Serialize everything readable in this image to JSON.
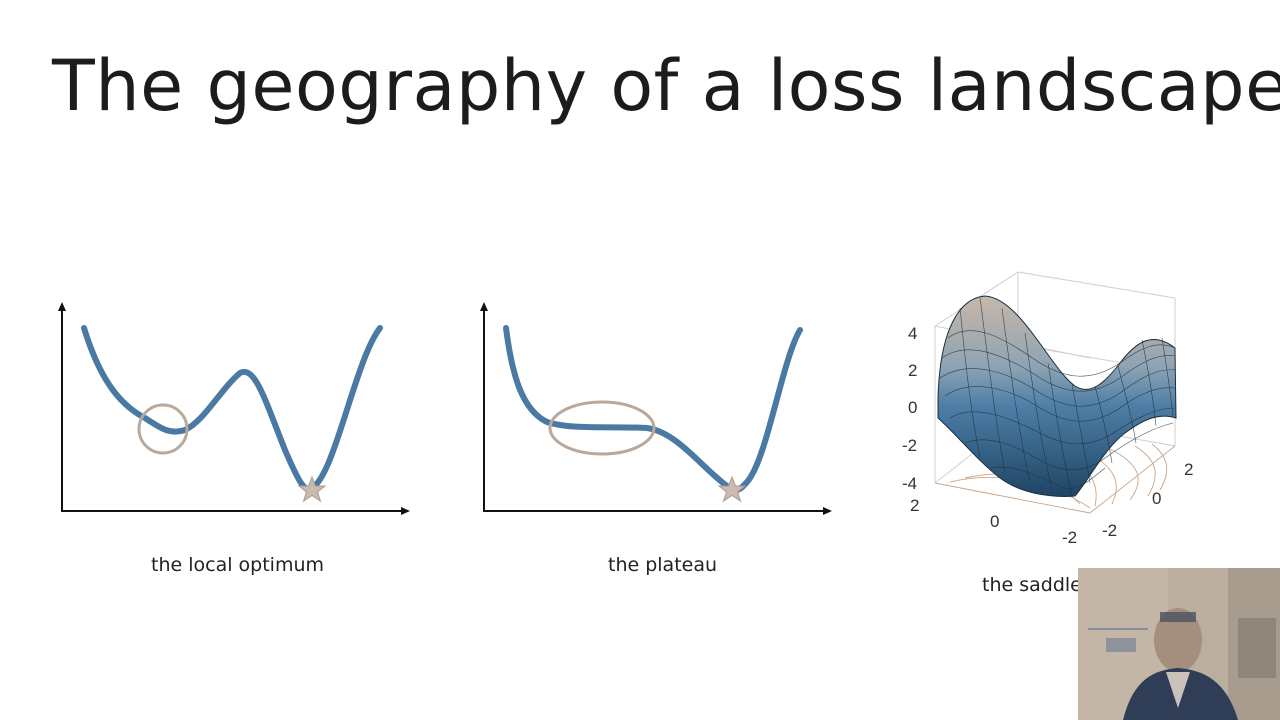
{
  "slide": {
    "title": "The geography of a loss landscape"
  },
  "panels": [
    {
      "caption": "the local optimum"
    },
    {
      "caption": "the plateau"
    },
    {
      "caption": "the saddle"
    }
  ],
  "saddle_plot": {
    "z_ticks": [
      "4",
      "2",
      "0",
      "-2",
      "-4"
    ],
    "x_ticks": [
      "2",
      "0",
      "-2"
    ],
    "y_ticks": [
      "2",
      "0",
      "-2"
    ]
  },
  "colors": {
    "curve": "#4a7aa3",
    "annotation": "#b8a99a",
    "surface_top": "#c7b7a8",
    "surface_mid": "#4d7ea6"
  }
}
